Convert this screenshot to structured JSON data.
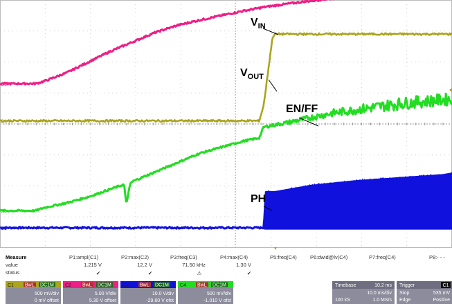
{
  "chart_data": {
    "type": "line",
    "x_unit": "ms",
    "xlim": [
      0,
      102
    ],
    "ylim": [
      -4,
      4
    ],
    "series": [
      {
        "name": "VIN",
        "channel": "C2",
        "color": "#ee1f86",
        "x": [
          0,
          5,
          8,
          10,
          15,
          20,
          25,
          30,
          35,
          40,
          45,
          50,
          55,
          60,
          65,
          70,
          75,
          80,
          85,
          90,
          95,
          100,
          102
        ],
        "y": [
          1.3,
          1.3,
          1.3,
          1.38,
          1.65,
          2.0,
          2.35,
          2.65,
          2.95,
          3.18,
          3.35,
          3.5,
          3.65,
          3.78,
          3.88,
          3.97,
          4.05,
          4.12,
          4.18,
          4.22,
          4.24,
          4.26,
          4.27
        ]
      },
      {
        "name": "VOUT",
        "channel": "C1",
        "color": "#aaa41e",
        "x": [
          0,
          10,
          20,
          30,
          40,
          50,
          58.5,
          59.5,
          60.5,
          61.5,
          62,
          70,
          80,
          90,
          100,
          102
        ],
        "y": [
          0.1,
          0.1,
          0.1,
          0.1,
          0.1,
          0.1,
          0.1,
          0.6,
          1.7,
          2.8,
          2.9,
          2.9,
          2.9,
          2.9,
          2.9,
          2.9
        ]
      },
      {
        "name": "EN/FF",
        "channel": "C4",
        "color": "#22dd22",
        "x": [
          0,
          5,
          8,
          10,
          15,
          20,
          25,
          28,
          28.5,
          29,
          29.5,
          30,
          35,
          40,
          45,
          50,
          55,
          58.5,
          59.5,
          65,
          70,
          75,
          80,
          85,
          90,
          95,
          100,
          102
        ],
        "y": [
          -2.8,
          -2.8,
          -2.8,
          -2.7,
          -2.55,
          -2.35,
          -2.1,
          -1.95,
          -2.6,
          -2.2,
          -1.9,
          -1.85,
          -1.55,
          -1.25,
          -0.95,
          -0.75,
          -0.55,
          -0.45,
          -0.1,
          0.05,
          0.2,
          0.35,
          0.45,
          0.55,
          0.65,
          0.72,
          0.78,
          0.8
        ]
      },
      {
        "name": "PH",
        "channel": "C3",
        "color": "#1111dd",
        "x": [
          0,
          10,
          20,
          30,
          40,
          50,
          58,
          59.5,
          60,
          62,
          70,
          80,
          90,
          100,
          102
        ],
        "y": [
          -3.35,
          -3.35,
          -3.35,
          -3.35,
          -3.35,
          -3.35,
          -3.35,
          -3.35,
          -2.2,
          -2.2,
          -2.0,
          -1.85,
          -1.75,
          -1.65,
          -1.6
        ]
      }
    ],
    "annotations": [
      {
        "text": "V",
        "sub": "IN"
      },
      {
        "text": "V",
        "sub": "OUT"
      },
      {
        "text": "EN/FF",
        "sub": ""
      },
      {
        "text": "PH",
        "sub": ""
      }
    ],
    "grid": true,
    "legend": "none"
  },
  "channel_markers": [
    "C3",
    "C1",
    "C4",
    "C3"
  ],
  "measure": {
    "heading": "Measure",
    "row_labels": [
      "value",
      "status"
    ],
    "columns": [
      {
        "name": "P1:ampl(C1)",
        "value": "1.215 V",
        "status": "✔"
      },
      {
        "name": "P2:max(C2)",
        "value": "12.2 V",
        "status": "✔"
      },
      {
        "name": "P3:freq(C3)",
        "value": "71.50 kHz",
        "status": "⚠"
      },
      {
        "name": "P4:max(C4)",
        "value": "1.30 V",
        "status": "✔"
      },
      {
        "name": "P5:freq(C4)",
        "value": "",
        "status": ""
      },
      {
        "name": "P6:dwid@lv(C4)",
        "value": "",
        "status": ""
      },
      {
        "name": "P7:freq(C4)",
        "value": "",
        "status": ""
      },
      {
        "name": "P8:- - -",
        "value": "",
        "status": ""
      }
    ]
  },
  "channels": [
    {
      "id": "C1",
      "tags": [
        "BwL",
        "DC1M"
      ],
      "scale": "500 mV/div",
      "offset": "0 mV offset",
      "color": "#aaa41e"
    },
    {
      "id": "C2",
      "tags": [
        "BwL",
        "DC1M"
      ],
      "scale": "5.00 V/div",
      "offset": "5.30 V offset",
      "color": "#ee1f86"
    },
    {
      "id": "C3",
      "tags": [
        "BwL",
        "DC1M"
      ],
      "scale": "10.0 V/div",
      "offset": "-29.60 V ofst",
      "color": "#1111dd"
    },
    {
      "id": "C4",
      "tags": [
        "BwL",
        "DC1M"
      ],
      "scale": "500 mV/div",
      "offset": "-1.010 V ofst",
      "color": "#22dd22"
    }
  ],
  "timebase": {
    "label": "Timebase",
    "value": "10.2 ms",
    "scale": "10.0 ms/div",
    "samples": "100 kS",
    "rate": "1.0 MS/s"
  },
  "trigger": {
    "label": "Trigger",
    "channel": "C1",
    "mode": "Stop",
    "level": "535 mV",
    "type": "Edge",
    "slope": "Positive"
  }
}
